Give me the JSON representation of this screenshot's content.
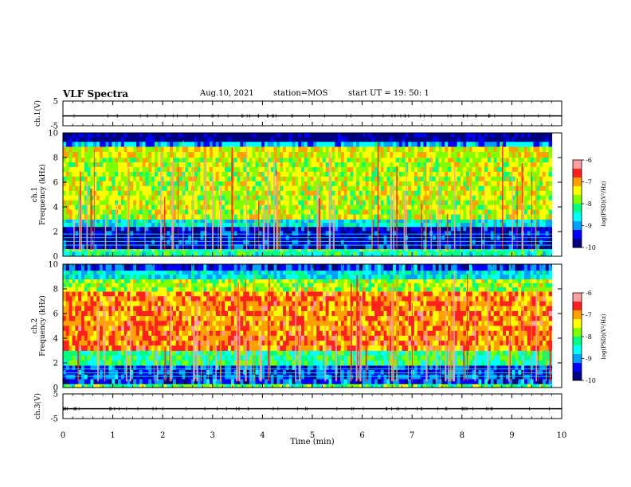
{
  "header": {
    "title": "VLF Spectra",
    "date": "Aug.10, 2021",
    "station": "station=MOS",
    "start": "start  UT =   19: 50: 1"
  },
  "colors": {
    "colormap": [
      "#000080",
      "#0000ff",
      "#00a0ff",
      "#00ffff",
      "#00ff80",
      "#80ff00",
      "#ffff00",
      "#ffa000",
      "#ff2020",
      "#ffa0a0",
      "#ffffff"
    ]
  },
  "chart_data": [
    {
      "type": "line",
      "name": "channel-1-waveform",
      "ylabel": "ch.1(V)",
      "ylim": [
        -5,
        5
      ],
      "yticks": [
        "5",
        "-5"
      ],
      "x": [
        0,
        10
      ],
      "y": [
        -1,
        -1
      ],
      "xlim": [
        0,
        10
      ]
    },
    {
      "type": "heatmap",
      "name": "channel-1-spectrogram",
      "ylabel": "ch.1\nFrequency (kHz)",
      "ylim": [
        0,
        10
      ],
      "yticks": [
        "0",
        "2",
        "4",
        "6",
        "8",
        "10"
      ],
      "xlim": [
        0,
        10
      ],
      "data_end_min": 9.8,
      "colorbar": {
        "label": "log(PSD)(V²/Hz)",
        "range": [
          -10,
          -6
        ],
        "ticks": [
          "-6",
          "-7",
          "-8",
          "-9",
          "-10"
        ]
      },
      "bands": [
        {
          "f": [
            0,
            0.4
          ],
          "level": -8.3
        },
        {
          "f": [
            0.4,
            0.6
          ],
          "level": -8.0
        },
        {
          "f": [
            0.6,
            2.4
          ],
          "level": -9.6
        },
        {
          "f": [
            2.4,
            3.0
          ],
          "level": -8.6
        },
        {
          "f": [
            3.0,
            8.0
          ],
          "level": -7.6
        },
        {
          "f": [
            8.0,
            8.9
          ],
          "level": -7.4
        },
        {
          "f": [
            8.9,
            9.3
          ],
          "level": -8.9
        },
        {
          "f": [
            9.3,
            10
          ],
          "level": -9.9
        }
      ],
      "lines_khz": [
        0.5,
        0.9,
        1.2,
        1.5,
        1.8
      ]
    },
    {
      "type": "heatmap",
      "name": "channel-2-spectrogram",
      "ylabel": "ch.2\nFrequency (kHz)",
      "ylim": [
        0,
        10
      ],
      "yticks": [
        "0",
        "2",
        "4",
        "6",
        "8",
        "10"
      ],
      "xlim": [
        0,
        10
      ],
      "data_end_min": 9.8,
      "colorbar": {
        "label": "log(PSD)(V²/Hz)",
        "range": [
          -10,
          -6
        ],
        "ticks": [
          "-6",
          "-7",
          "-8",
          "-9",
          "-10"
        ]
      },
      "bands": [
        {
          "f": [
            0,
            0.3
          ],
          "level": -8.0
        },
        {
          "f": [
            0.3,
            1.8
          ],
          "level": -9.3
        },
        {
          "f": [
            1.8,
            3.0
          ],
          "level": -8.2
        },
        {
          "f": [
            3.0,
            7.8
          ],
          "level": -6.9
        },
        {
          "f": [
            7.8,
            8.8
          ],
          "level": -7.7
        },
        {
          "f": [
            8.8,
            9.5
          ],
          "level": -8.6
        },
        {
          "f": [
            9.5,
            10
          ],
          "level": -9.3
        }
      ],
      "lines_khz": [
        0.9,
        1.2,
        1.5
      ]
    },
    {
      "type": "line",
      "name": "channel-3-waveform",
      "ylabel": "ch.3(V)",
      "ylim": [
        -5,
        5
      ],
      "yticks": [
        "5",
        "-5"
      ],
      "x": [
        0,
        10
      ],
      "y": [
        -1,
        -1
      ],
      "xlim": [
        0,
        10
      ],
      "xlabel": "Time  (min)",
      "xticks": [
        "0",
        "1",
        "2",
        "3",
        "4",
        "5",
        "6",
        "7",
        "8",
        "9",
        "10"
      ]
    }
  ]
}
